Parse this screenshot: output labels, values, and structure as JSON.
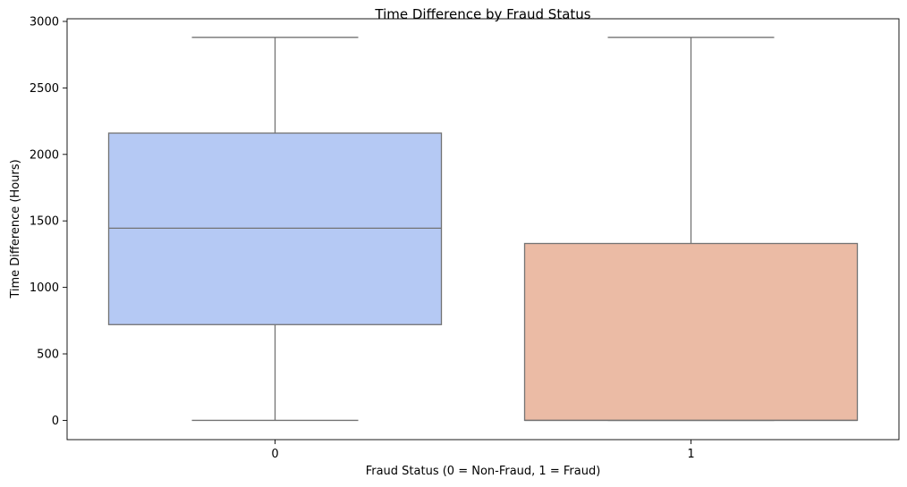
{
  "chart_data": {
    "type": "box",
    "title": "Time Difference by Fraud Status",
    "xlabel": "Fraud Status (0 = Non-Fraud, 1 = Fraud)",
    "ylabel": "Time Difference (Hours)",
    "categories": [
      "0",
      "1"
    ],
    "ylim": [
      -145,
      3020
    ],
    "yticks": [
      0,
      500,
      1000,
      1500,
      2000,
      2500,
      3000
    ],
    "grid": false,
    "boxes": [
      {
        "category": "0",
        "whisker_low": 0,
        "q1": 720,
        "median": 1445,
        "q3": 2160,
        "whisker_high": 2880,
        "color": "#b5c9f4"
      },
      {
        "category": "1",
        "whisker_low": 0,
        "q1": 0,
        "median": 0,
        "q3": 1330,
        "whisker_high": 2880,
        "color": "#ebbba5"
      }
    ],
    "edge_color": "#737373"
  }
}
